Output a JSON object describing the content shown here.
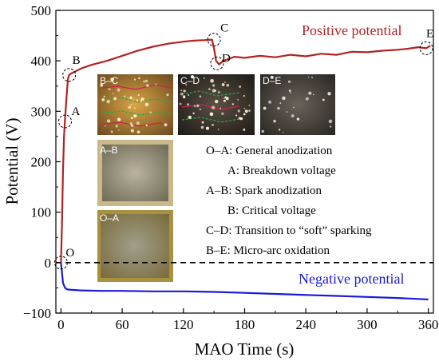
{
  "chart_data": {
    "type": "line",
    "xlabel": "MAO Time (s)",
    "ylabel": "Potential (V)",
    "xlim": [
      -5,
      365
    ],
    "ylim": [
      -100,
      500
    ],
    "xticks": [
      "0",
      "60",
      "120",
      "180",
      "240",
      "300",
      "360"
    ],
    "xtick_values": [
      0,
      60,
      120,
      180,
      240,
      300,
      360
    ],
    "yticks": [
      "−100",
      "0",
      "100",
      "200",
      "300",
      "400",
      "500"
    ],
    "ytick_values": [
      -100,
      0,
      100,
      200,
      300,
      400,
      500
    ],
    "series": [
      {
        "name": "Positive potential",
        "color": "#b22222",
        "x": [
          0,
          1,
          2,
          3,
          4,
          5,
          6,
          7,
          8,
          10,
          15,
          20,
          30,
          45,
          60,
          75,
          90,
          105,
          120,
          130,
          140,
          148,
          150,
          152,
          155,
          158,
          162,
          170,
          180,
          195,
          210,
          225,
          240,
          255,
          270,
          285,
          300,
          315,
          330,
          340,
          350,
          358,
          362
        ],
        "y": [
          0,
          80,
          180,
          250,
          285,
          315,
          345,
          365,
          372,
          375,
          380,
          385,
          392,
          400,
          410,
          420,
          428,
          434,
          438,
          440,
          441,
          442,
          425,
          400,
          393,
          398,
          402,
          408,
          406,
          410,
          407,
          412,
          409,
          414,
          412,
          418,
          417,
          420,
          422,
          424,
          427,
          425,
          430
        ]
      },
      {
        "name": "Negative potential",
        "color": "#1a1ad9",
        "x": [
          0,
          1,
          2,
          4,
          6,
          10,
          20,
          40,
          60,
          90,
          120,
          150,
          180,
          210,
          240,
          270,
          300,
          330,
          350,
          360
        ],
        "y": [
          0,
          -20,
          -40,
          -50,
          -53,
          -54,
          -55,
          -56,
          -56,
          -57,
          -57,
          -58,
          -60,
          -62,
          -64,
          -66,
          -68,
          -70,
          -72,
          -73
        ]
      }
    ],
    "reference_line": {
      "y": 0,
      "style": "dashed"
    },
    "points": [
      {
        "label": "O",
        "x": 0,
        "y": 0
      },
      {
        "label": "A",
        "x": 4,
        "y": 280
      },
      {
        "label": "B",
        "x": 8,
        "y": 372
      },
      {
        "label": "C",
        "x": 150,
        "y": 442
      },
      {
        "label": "D",
        "x": 153,
        "y": 395
      },
      {
        "label": "E",
        "x": 358,
        "y": 425
      }
    ],
    "annotations": [
      {
        "key": "O–A:",
        "text": "General anodization"
      },
      {
        "key": "A:",
        "text": "Breakdown voltage"
      },
      {
        "key": "A–B:",
        "text": "Spark anodization"
      },
      {
        "key": "B:",
        "text": "Critical voltage"
      },
      {
        "key": "C–D:",
        "text": "Transition to “soft” sparking"
      },
      {
        "key": "B–E:",
        "text": "Micro-arc oxidation"
      }
    ],
    "inset_images": [
      {
        "label": "B–C",
        "style": "sparks-green"
      },
      {
        "label": "C–D",
        "style": "sparks-dark"
      },
      {
        "label": "D–E",
        "style": "sparks-sparse"
      },
      {
        "label": "A–B",
        "style": "plain-light"
      },
      {
        "label": "O–A",
        "style": "plain-dim"
      }
    ],
    "grid": false
  }
}
